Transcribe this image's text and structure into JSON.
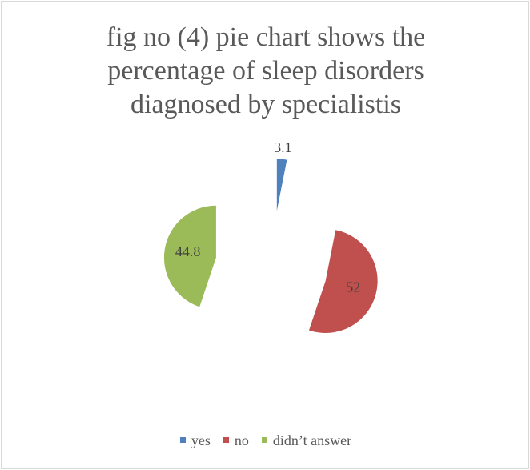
{
  "chart_data": {
    "type": "pie",
    "title": "fig no (4) pie chart shows the percentage of sleep disorders diagnosed by specialistis",
    "categories": [
      "yes",
      "no",
      "didn’t answer"
    ],
    "values": [
      3.1,
      52,
      44.8
    ],
    "colors": [
      "#4f81bd",
      "#c0504d",
      "#9bbb59"
    ],
    "legend": "bottom"
  }
}
